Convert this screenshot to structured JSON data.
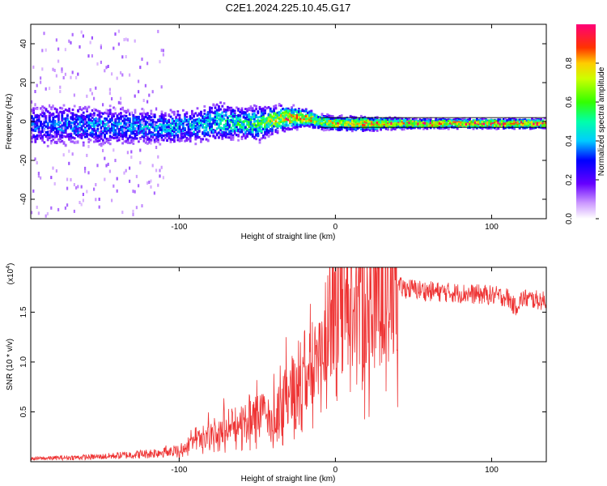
{
  "title": "C2E1.2024.225.10.45.G17",
  "chart_data": [
    {
      "type": "heatmap",
      "xlabel": "Height of straight line (km)",
      "ylabel": "Frequency (Hz)",
      "xlim": [
        -195,
        135
      ],
      "ylim": [
        -50,
        50
      ],
      "xticks": [
        -100,
        0,
        100
      ],
      "yticks": [
        -40,
        -20,
        0,
        20,
        40
      ],
      "colorbar": {
        "label": "Normalized spectral amplitude",
        "range": [
          0,
          1
        ],
        "ticks": [
          "0.0",
          "0.2",
          "0.4",
          "0.6",
          "0.8"
        ]
      },
      "ridge": {
        "x": [
          -195,
          -150,
          -110,
          -90,
          -75,
          -60,
          -50,
          -40,
          -30,
          -20,
          -10,
          0,
          20,
          50,
          80,
          110,
          135
        ],
        "freq": [
          -2,
          -2,
          -3,
          -2,
          0,
          -1,
          -1,
          1,
          2,
          2,
          0,
          -1,
          -1,
          -1,
          -1,
          -1,
          -1
        ],
        "peak_amplitude": [
          0.35,
          0.4,
          0.42,
          0.45,
          0.5,
          0.55,
          0.6,
          0.75,
          0.9,
          0.85,
          0.8,
          0.85,
          0.9,
          0.95,
          0.98,
          1.0,
          1.0
        ],
        "spread_hz": [
          10,
          9,
          8,
          8,
          9,
          7,
          8,
          6,
          5,
          4,
          3,
          3,
          3,
          2,
          2,
          2,
          2
        ]
      }
    },
    {
      "type": "line",
      "xlabel": "Height of straight line (km)",
      "ylabel": "SNR (10 * v/v)",
      "multiplier": "(x10",
      "multiplier_exp": "4",
      "multiplier_close": ")",
      "xlim": [
        -195,
        135
      ],
      "ylim": [
        0,
        19500
      ],
      "xticks": [
        -100,
        0,
        100
      ],
      "yticks": [
        5000,
        10000,
        15000
      ],
      "ytick_labels": [
        "0.5",
        "1.0",
        "1.5"
      ],
      "color": "#ee3333",
      "envelope": {
        "x": [
          -195,
          -150,
          -120,
          -100,
          -90,
          -80,
          -70,
          -60,
          -50,
          -40,
          -30,
          -20,
          -10,
          0,
          10,
          20,
          30,
          40,
          50,
          60,
          80,
          100,
          110,
          115,
          120,
          135
        ],
        "y": [
          300,
          500,
          800,
          1200,
          2000,
          2800,
          3500,
          4000,
          5000,
          4500,
          7000,
          9000,
          12000,
          14000,
          16000,
          17000,
          17200,
          17500,
          17300,
          17100,
          16900,
          16700,
          16500,
          15500,
          16400,
          16100
        ]
      }
    }
  ]
}
